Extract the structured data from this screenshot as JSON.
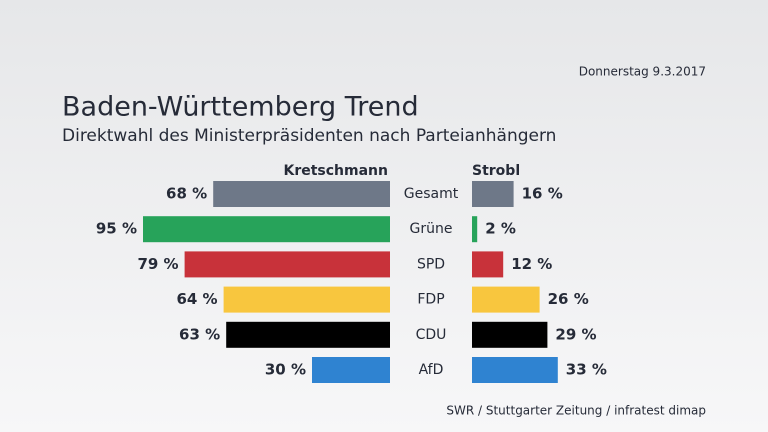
{
  "date": "Donnerstag 9.3.2017",
  "source": "SWR / Stuttgarter Zeitung / infratest dimap",
  "chart_data": {
    "type": "bar",
    "title": "Baden-Württemberg Trend",
    "subtitle": "Direktwahl des Ministerpräsidenten nach Parteianhängern",
    "categories": [
      "Gesamt",
      "Grüne",
      "SPD",
      "FDP",
      "CDU",
      "AfD"
    ],
    "colors": [
      "#6e7888",
      "#27a35a",
      "#c8323a",
      "#f8c63e",
      "#000000",
      "#2f83d1"
    ],
    "series": [
      {
        "name": "Kretschmann",
        "values": [
          68,
          95,
          79,
          64,
          63,
          30
        ],
        "value_labels": [
          "68 %",
          "95 %",
          "79 %",
          "64 %",
          "63 %",
          "30 %"
        ]
      },
      {
        "name": "Strobl",
        "values": [
          16,
          2,
          12,
          26,
          29,
          33
        ],
        "value_labels": [
          "16 %",
          "2 %",
          "12 %",
          "26 %",
          "29 %",
          "33 %"
        ]
      }
    ]
  }
}
